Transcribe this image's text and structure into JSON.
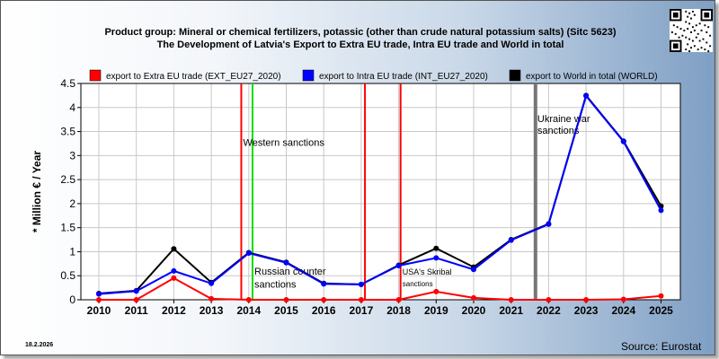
{
  "header": {
    "title_line1": "Product group: Mineral or chemical fertilizers, potassic (other than crude natural potassium salts) (Sitc 5623)",
    "title_line2": "The Development of Latvia's Export to Extra EU trade, Intra EU trade and World in total"
  },
  "footer": {
    "date": "18.2.2026",
    "source": "Source: Eurostat"
  },
  "chart_data": {
    "type": "line",
    "ylabel": "* Million € / Year",
    "ylim": [
      0,
      4.5
    ],
    "yticks": [
      "0",
      "0.5",
      "1",
      "1.5",
      "2",
      "2.5",
      "3",
      "3.5",
      "4",
      "4.5"
    ],
    "categories": [
      "2010",
      "2011",
      "2012",
      "2013",
      "2014",
      "2015",
      "2016",
      "2017",
      "2018",
      "2019",
      "2020",
      "2021",
      "2022",
      "2023",
      "2024",
      "2025"
    ],
    "grid": true,
    "legend_position": "top",
    "series": [
      {
        "name": "export to Extra EU trade (EXT_EU27_2020)",
        "color": "#ff0000",
        "values": [
          0,
          0,
          0.45,
          0.02,
          0,
          0,
          0,
          0,
          0,
          0.17,
          0.04,
          0,
          0,
          0,
          0.01,
          0.08
        ]
      },
      {
        "name": "export to Intra EU trade (INT_EU27_2020)",
        "color": "#0000ff",
        "values": [
          0.12,
          0.18,
          0.6,
          0.34,
          0.97,
          0.77,
          0.33,
          0.32,
          0.71,
          0.87,
          0.63,
          1.24,
          1.57,
          4.24,
          3.29,
          1.86
        ]
      },
      {
        "name": "export to World in total (WORLD)",
        "color": "#000000",
        "values": [
          0.13,
          0.19,
          1.06,
          0.36,
          0.98,
          0.78,
          0.34,
          0.32,
          0.72,
          1.07,
          0.68,
          1.25,
          1.58,
          4.25,
          3.3,
          1.95
        ]
      }
    ],
    "annotations": [
      {
        "year": 2013.8,
        "color": "#ff0000",
        "label": ""
      },
      {
        "year": 2014.1,
        "color": "#00dd00",
        "label": ""
      },
      {
        "year": 2017.1,
        "color": "#ff0000",
        "label": ""
      },
      {
        "year": 2018.05,
        "color": "#ff0000",
        "label": ""
      },
      {
        "year": 2021.65,
        "color": "#777777",
        "label": ""
      }
    ],
    "annotation_texts": [
      {
        "text": "Western sanctions",
        "year": 2013.85,
        "y": 3.2,
        "size": 11
      },
      {
        "text": "Russian counter",
        "year": 2014.15,
        "y": 0.52,
        "size": 11
      },
      {
        "text": "sanctions",
        "year": 2014.15,
        "y": 0.25,
        "size": 11
      },
      {
        "text": "USA's Skribal",
        "year": 2018.1,
        "y": 0.52,
        "size": 9
      },
      {
        "text": "sanctions",
        "year": 2018.1,
        "y": 0.28,
        "size": 8
      },
      {
        "text": "Ukraine war",
        "year": 2021.7,
        "y": 3.7,
        "size": 11
      },
      {
        "text": "sanctions",
        "year": 2021.7,
        "y": 3.45,
        "size": 11
      }
    ]
  }
}
